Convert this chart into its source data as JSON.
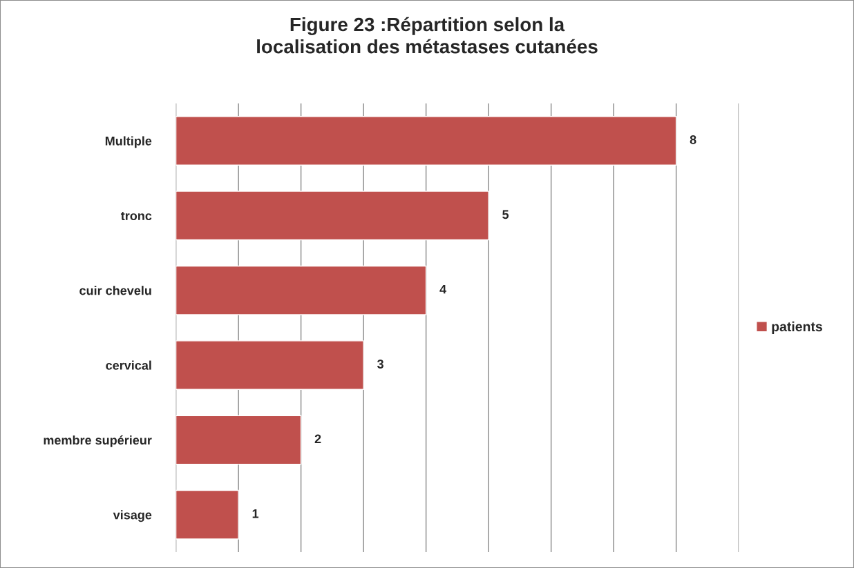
{
  "chart_data": {
    "type": "bar",
    "orientation": "horizontal",
    "title": "Figure 23 :Répartition selon la\nlocalisation des métastases cutanées",
    "categories": [
      "Multiple",
      "tronc",
      "cuir chevelu",
      "cervical",
      "membre supérieur",
      "visage"
    ],
    "series": [
      {
        "name": "patients",
        "color": "#c0504d",
        "values": [
          8,
          5,
          4,
          3,
          2,
          1
        ]
      }
    ],
    "xlim": [
      0,
      9
    ],
    "xticks": [
      {
        "value": 0,
        "label": null
      },
      {
        "value": 1,
        "label": null
      },
      {
        "value": 2,
        "label": null
      },
      {
        "value": 3,
        "label": null
      },
      {
        "value": 4,
        "label": null
      },
      {
        "value": 5,
        "label": null
      },
      {
        "value": 6,
        "label": null
      },
      {
        "value": 7,
        "label": null
      },
      {
        "value": 8,
        "label": null
      },
      {
        "value": 9,
        "label": null
      }
    ],
    "tick_labels": "y",
    "grid": "x",
    "legend": "right",
    "data_labels": true
  }
}
